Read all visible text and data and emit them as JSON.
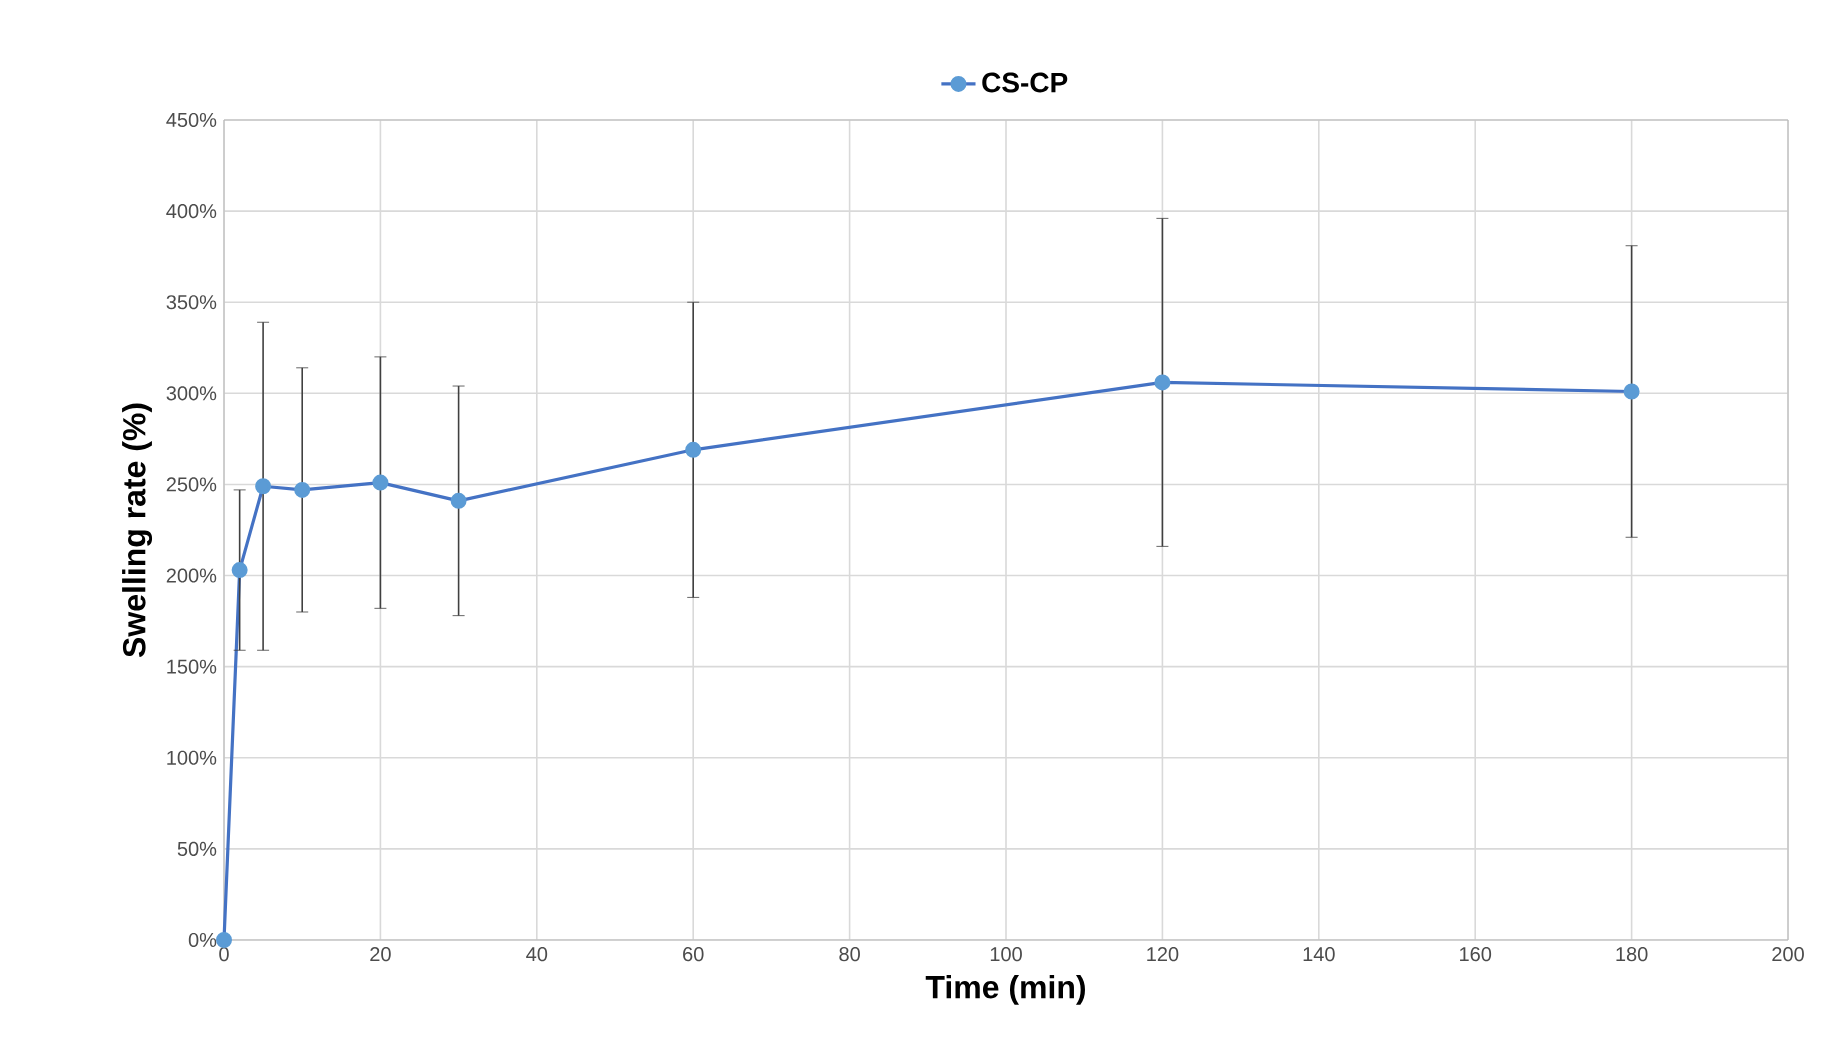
{
  "chart_data": {
    "type": "line",
    "xlabel": "Time (min)",
    "ylabel": "Swelling rate (%)",
    "x": [
      0,
      2,
      5,
      10,
      20,
      30,
      60,
      120,
      180
    ],
    "series": [
      {
        "name": "CS-CP",
        "color": "#4472c4",
        "values": [
          0,
          203,
          249,
          247,
          251,
          241,
          269,
          306,
          301
        ],
        "errors": [
          null,
          44,
          90,
          67,
          69,
          63,
          81,
          90,
          80
        ]
      }
    ],
    "xlim": [
      0,
      200
    ],
    "xticks": [
      0,
      20,
      40,
      60,
      80,
      100,
      120,
      140,
      160,
      180,
      200
    ],
    "ylim": [
      0,
      450
    ],
    "yticks": [
      {
        "value": 0,
        "label": "0%"
      },
      {
        "value": 50,
        "label": "50%"
      },
      {
        "value": 100,
        "label": "100%"
      },
      {
        "value": 150,
        "label": "150%"
      },
      {
        "value": 200,
        "label": "200%"
      },
      {
        "value": 250,
        "label": "250%"
      },
      {
        "value": 300,
        "label": "300%"
      },
      {
        "value": 350,
        "label": "350%"
      },
      {
        "value": 400,
        "label": "400%"
      },
      {
        "value": 450,
        "label": "450%"
      }
    ],
    "grid": true,
    "legend": "top",
    "marker": "circle",
    "line_style": "solid"
  }
}
